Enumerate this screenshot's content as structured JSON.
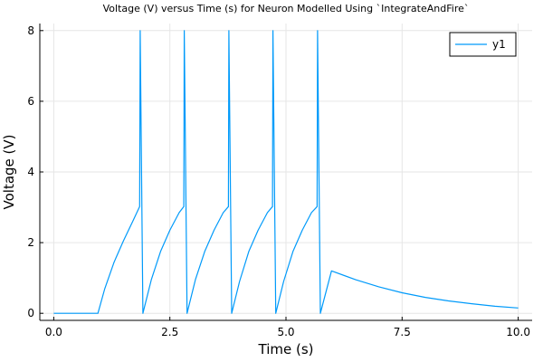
{
  "chart_data": {
    "type": "line",
    "title": "Voltage (V) versus Time (s) for Neuron Modelled Using `IntegrateAndFire`",
    "xlabel": "Time (s)",
    "ylabel": "Voltage (V)",
    "xlim": [
      -0.3,
      10.3
    ],
    "ylim": [
      -0.2,
      8.2
    ],
    "xticks": [
      0.0,
      2.5,
      5.0,
      7.5,
      10.0
    ],
    "xtick_labels": [
      "0.0",
      "2.5",
      "5.0",
      "7.5",
      "10.0"
    ],
    "yticks": [
      0,
      2,
      4,
      6,
      8
    ],
    "ytick_labels": [
      "0",
      "2",
      "4",
      "6",
      "8"
    ],
    "grid": true,
    "legend_position": "top-right",
    "colors": {
      "series": "#009AFA",
      "axis": "#000000",
      "grid": "#E6E6E6"
    },
    "series": [
      {
        "name": "y1",
        "x": [
          0.0,
          0.95,
          1.1,
          1.3,
          1.5,
          1.7,
          1.85,
          1.86,
          1.92,
          2.1,
          2.3,
          2.5,
          2.7,
          2.8,
          2.81,
          2.87,
          3.05,
          3.25,
          3.45,
          3.65,
          3.76,
          3.77,
          3.83,
          4.0,
          4.2,
          4.4,
          4.6,
          4.71,
          4.72,
          4.78,
          4.95,
          5.15,
          5.35,
          5.55,
          5.67,
          5.68,
          5.74,
          5.98,
          6.5,
          7.0,
          7.5,
          8.0,
          8.5,
          9.0,
          9.5,
          10.0
        ],
        "y": [
          0.0,
          0.0,
          0.7,
          1.45,
          2.05,
          2.6,
          3.02,
          8.0,
          0.0,
          0.95,
          1.75,
          2.35,
          2.85,
          3.02,
          8.0,
          0.0,
          0.95,
          1.75,
          2.35,
          2.85,
          3.02,
          8.0,
          0.0,
          0.9,
          1.75,
          2.35,
          2.85,
          3.02,
          8.0,
          0.0,
          0.9,
          1.75,
          2.35,
          2.85,
          3.02,
          8.0,
          0.0,
          1.2,
          0.95,
          0.75,
          0.58,
          0.45,
          0.35,
          0.27,
          0.2,
          0.15
        ]
      }
    ]
  }
}
